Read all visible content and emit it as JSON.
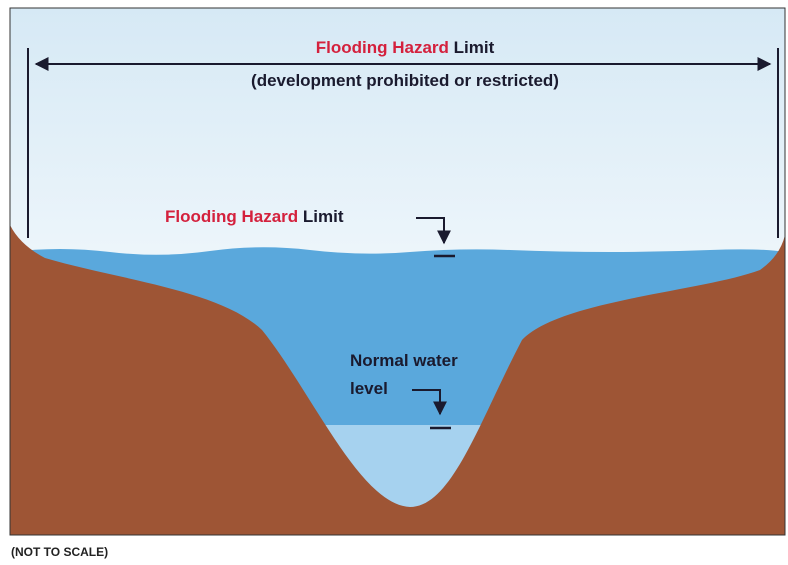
{
  "top_label": {
    "highlight": "Flooding Hazard",
    "rest": "Limit",
    "note": "(development prohibited or restricted)"
  },
  "level_label": {
    "highlight": "Flooding Hazard",
    "rest": "Limit"
  },
  "normal_level": {
    "lines": [
      "Normal water",
      "level"
    ]
  },
  "footnote": "(NOT TO SCALE)"
}
